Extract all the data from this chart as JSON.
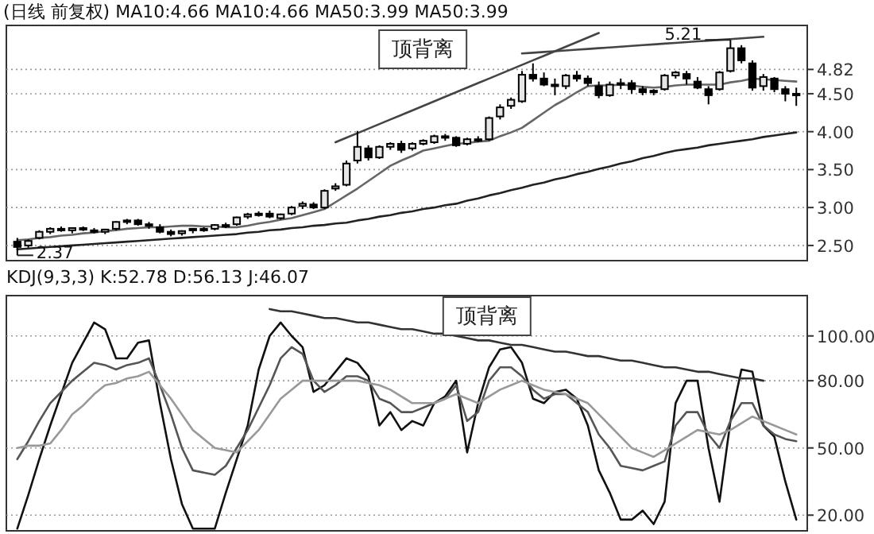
{
  "chart_data": [
    {
      "type": "candlestick",
      "title": "(日线 前复权) MA10:4.66 MA10:4.66 MA50:3.99 MA50:3.99",
      "tick_labels": "y",
      "grid": "y",
      "ylim": [
        2.3,
        5.4
      ],
      "yticks": [
        {
          "value": 2.5,
          "label": "2.50"
        },
        {
          "value": 3,
          "label": "3.00"
        },
        {
          "value": 3.5,
          "label": "3.50"
        },
        {
          "value": 4,
          "label": "4.00"
        },
        {
          "value": 4.5,
          "label": "4.50"
        },
        {
          "value": 4.82,
          "label": "4.82"
        }
      ],
      "categories": [
        null,
        null,
        null,
        null,
        null,
        null,
        null,
        null,
        null,
        null,
        null,
        null,
        null,
        null,
        null,
        null,
        null,
        null,
        null,
        null,
        null,
        null,
        null,
        null,
        null,
        null,
        null,
        null,
        null,
        null,
        null,
        null,
        null,
        null,
        null,
        null,
        null,
        null,
        null,
        null,
        null,
        null,
        null,
        null,
        null,
        null,
        null,
        null,
        null,
        null,
        null,
        null,
        null,
        null,
        null,
        null,
        null,
        null,
        null,
        null,
        null,
        null,
        null,
        null,
        null,
        null,
        null,
        null,
        null,
        null,
        null,
        null
      ],
      "ohlc": [
        [
          2.55,
          2.6,
          2.37,
          2.48
        ],
        [
          2.5,
          2.58,
          2.47,
          2.56
        ],
        [
          2.6,
          2.7,
          2.58,
          2.68
        ],
        [
          2.68,
          2.74,
          2.65,
          2.72
        ],
        [
          2.72,
          2.75,
          2.68,
          2.7
        ],
        [
          2.7,
          2.74,
          2.66,
          2.73
        ],
        [
          2.73,
          2.75,
          2.69,
          2.71
        ],
        [
          2.7,
          2.73,
          2.66,
          2.69
        ],
        [
          2.68,
          2.72,
          2.65,
          2.71
        ],
        [
          2.72,
          2.82,
          2.7,
          2.81
        ],
        [
          2.82,
          2.85,
          2.78,
          2.83
        ],
        [
          2.83,
          2.85,
          2.76,
          2.78
        ],
        [
          2.78,
          2.81,
          2.72,
          2.76
        ],
        [
          2.74,
          2.78,
          2.66,
          2.68
        ],
        [
          2.68,
          2.71,
          2.62,
          2.65
        ],
        [
          2.66,
          2.7,
          2.63,
          2.69
        ],
        [
          2.7,
          2.73,
          2.66,
          2.72
        ],
        [
          2.72,
          2.74,
          2.68,
          2.7
        ],
        [
          2.72,
          2.78,
          2.7,
          2.77
        ],
        [
          2.77,
          2.8,
          2.73,
          2.76
        ],
        [
          2.78,
          2.88,
          2.76,
          2.87
        ],
        [
          2.88,
          2.93,
          2.85,
          2.91
        ],
        [
          2.92,
          2.95,
          2.88,
          2.9
        ],
        [
          2.92,
          2.96,
          2.86,
          2.88
        ],
        [
          2.86,
          2.92,
          2.84,
          2.91
        ],
        [
          2.92,
          3.02,
          2.9,
          3.0
        ],
        [
          3.02,
          3.08,
          2.98,
          3.05
        ],
        [
          3.04,
          3.07,
          2.98,
          3.0
        ],
        [
          3.0,
          3.24,
          2.98,
          3.22
        ],
        [
          3.25,
          3.32,
          3.22,
          3.28
        ],
        [
          3.3,
          3.62,
          3.28,
          3.58
        ],
        [
          3.62,
          4.01,
          3.58,
          3.8
        ],
        [
          3.78,
          3.82,
          3.62,
          3.66
        ],
        [
          3.66,
          3.82,
          3.64,
          3.8
        ],
        [
          3.8,
          3.86,
          3.76,
          3.84
        ],
        [
          3.84,
          3.88,
          3.72,
          3.76
        ],
        [
          3.78,
          3.86,
          3.75,
          3.84
        ],
        [
          3.84,
          3.9,
          3.82,
          3.88
        ],
        [
          3.86,
          3.96,
          3.84,
          3.94
        ],
        [
          3.94,
          3.97,
          3.88,
          3.92
        ],
        [
          3.92,
          3.94,
          3.8,
          3.82
        ],
        [
          3.84,
          3.92,
          3.82,
          3.9
        ],
        [
          3.9,
          3.94,
          3.86,
          3.88
        ],
        [
          3.9,
          4.2,
          3.88,
          4.18
        ],
        [
          4.2,
          4.36,
          4.16,
          4.32
        ],
        [
          4.34,
          4.45,
          4.3,
          4.42
        ],
        [
          4.4,
          4.8,
          4.38,
          4.75
        ],
        [
          4.75,
          4.9,
          4.66,
          4.7
        ],
        [
          4.7,
          4.78,
          4.6,
          4.62
        ],
        [
          4.62,
          4.7,
          4.48,
          4.6
        ],
        [
          4.6,
          4.76,
          4.56,
          4.74
        ],
        [
          4.74,
          4.8,
          4.66,
          4.7
        ],
        [
          4.7,
          4.74,
          4.6,
          4.64
        ],
        [
          4.6,
          4.66,
          4.44,
          4.48
        ],
        [
          4.48,
          4.66,
          4.46,
          4.62
        ],
        [
          4.62,
          4.7,
          4.56,
          4.64
        ],
        [
          4.64,
          4.68,
          4.5,
          4.56
        ],
        [
          4.56,
          4.6,
          4.48,
          4.52
        ],
        [
          4.52,
          4.56,
          4.48,
          4.54
        ],
        [
          4.56,
          4.76,
          4.54,
          4.74
        ],
        [
          4.74,
          4.8,
          4.7,
          4.78
        ],
        [
          4.76,
          4.8,
          4.62,
          4.7
        ],
        [
          4.66,
          4.72,
          4.56,
          4.58
        ],
        [
          4.56,
          4.6,
          4.36,
          4.48
        ],
        [
          4.56,
          4.8,
          4.54,
          4.78
        ],
        [
          4.8,
          5.21,
          4.78,
          5.1
        ],
        [
          5.1,
          5.14,
          4.9,
          4.94
        ],
        [
          4.9,
          4.94,
          4.54,
          4.58
        ],
        [
          4.6,
          4.76,
          4.54,
          4.72
        ],
        [
          4.7,
          4.72,
          4.52,
          4.56
        ],
        [
          4.56,
          4.6,
          4.4,
          4.5
        ],
        [
          4.5,
          4.58,
          4.34,
          4.48
        ]
      ],
      "series": [
        {
          "type": "line",
          "color": "#666666",
          "values": [
            2.57,
            2.58,
            2.6,
            2.61,
            2.63,
            2.64,
            2.66,
            2.67,
            2.69,
            2.7,
            2.72,
            2.73,
            2.74,
            2.74,
            2.75,
            2.76,
            2.76,
            2.75,
            2.75,
            2.74,
            2.74,
            2.76,
            2.79,
            2.81,
            2.84,
            2.86,
            2.9,
            2.94,
            2.98,
            3.07,
            3.16,
            3.25,
            3.35,
            3.45,
            3.55,
            3.62,
            3.68,
            3.75,
            3.78,
            3.81,
            3.84,
            3.85,
            3.87,
            3.88,
            3.94,
            3.99,
            4.05,
            4.15,
            4.25,
            4.35,
            4.43,
            4.52,
            4.6,
            4.61,
            4.61,
            4.62,
            4.61,
            4.59,
            4.58,
            4.59,
            4.61,
            4.62,
            4.62,
            4.62,
            4.62,
            4.65,
            4.67,
            4.7,
            4.69,
            4.68,
            4.67,
            4.66
          ]
        },
        {
          "type": "line",
          "color": "#222222",
          "values": [
            2.45,
            2.46,
            2.47,
            2.48,
            2.49,
            2.5,
            2.51,
            2.52,
            2.53,
            2.54,
            2.55,
            2.56,
            2.57,
            2.58,
            2.59,
            2.6,
            2.61,
            2.62,
            2.63,
            2.64,
            2.65,
            2.67,
            2.68,
            2.7,
            2.71,
            2.73,
            2.74,
            2.76,
            2.77,
            2.79,
            2.8,
            2.83,
            2.85,
            2.88,
            2.9,
            2.93,
            2.95,
            2.98,
            3.0,
            3.03,
            3.05,
            3.09,
            3.12,
            3.16,
            3.19,
            3.23,
            3.26,
            3.3,
            3.33,
            3.37,
            3.4,
            3.44,
            3.47,
            3.51,
            3.54,
            3.58,
            3.61,
            3.65,
            3.68,
            3.72,
            3.75,
            3.77,
            3.79,
            3.82,
            3.84,
            3.86,
            3.88,
            3.9,
            3.93,
            3.95,
            3.97,
            3.99
          ]
        },
        {
          "type": "line",
          "color": "#444444",
          "values": [
            null,
            null,
            null,
            null,
            null,
            null,
            null,
            null,
            null,
            null,
            null,
            null,
            null,
            null,
            null,
            null,
            null,
            null,
            null,
            null,
            null,
            null,
            null,
            null,
            null,
            null,
            null,
            null,
            null,
            3.86,
            3.92,
            3.98,
            4.04,
            4.1,
            4.16,
            4.22,
            4.28,
            4.34,
            4.4,
            4.46,
            4.52,
            4.58,
            4.64,
            4.7,
            4.76,
            4.82,
            4.88,
            4.94,
            5.0,
            5.06,
            5.12,
            5.18,
            5.24,
            5.3,
            null,
            null,
            null,
            null,
            null,
            null,
            null,
            null,
            null,
            null,
            null,
            null,
            null,
            null,
            null,
            null,
            null,
            null
          ]
        },
        {
          "type": "line",
          "color": "#444444",
          "values": [
            null,
            null,
            null,
            null,
            null,
            null,
            null,
            null,
            null,
            null,
            null,
            null,
            null,
            null,
            null,
            null,
            null,
            null,
            null,
            null,
            null,
            null,
            null,
            null,
            null,
            null,
            null,
            null,
            null,
            null,
            null,
            null,
            null,
            null,
            null,
            null,
            null,
            null,
            null,
            null,
            null,
            null,
            null,
            null,
            null,
            null,
            5.03,
            5.04,
            5.05,
            5.06,
            5.07,
            5.08,
            5.09,
            5.1,
            5.11,
            5.12,
            5.13,
            5.14,
            5.15,
            5.16,
            5.17,
            5.18,
            5.19,
            5.2,
            5.21,
            5.22,
            5.23,
            5.24,
            5.25,
            null,
            null,
            null
          ]
        }
      ],
      "annotations": [
        "顶背离",
        {
          "text": "5.21",
          "y": 5.21
        },
        {
          "text": "2.37",
          "y": 2.37
        }
      ]
    },
    {
      "type": "line",
      "title": "KDJ(9,3,3) K:52.78 D:56.13 J:46.07",
      "tick_labels": "y",
      "grid": "y",
      "ylim": [
        13,
        118
      ],
      "yticks": [
        {
          "value": 20,
          "label": "20.00"
        },
        {
          "value": 50,
          "label": "50.00"
        },
        {
          "value": 80,
          "label": "80.00"
        },
        {
          "value": 100,
          "label": "100.00"
        }
      ],
      "categories": [
        null,
        null,
        null,
        null,
        null,
        null,
        null,
        null,
        null,
        null,
        null,
        null,
        null,
        null,
        null,
        null,
        null,
        null,
        null,
        null,
        null,
        null,
        null,
        null,
        null,
        null,
        null,
        null,
        null,
        null,
        null,
        null,
        null,
        null,
        null,
        null,
        null,
        null,
        null,
        null,
        null,
        null,
        null,
        null,
        null,
        null,
        null,
        null,
        null,
        null,
        null,
        null,
        null,
        null,
        null,
        null,
        null,
        null,
        null,
        null,
        null,
        null,
        null,
        null,
        null,
        null,
        null,
        null,
        null,
        null,
        null,
        null
      ],
      "series": [
        {
          "color": "#111111",
          "values": [
            14,
            29,
            45,
            60,
            74,
            88,
            97,
            106,
            103,
            90,
            90,
            97,
            98,
            70,
            45,
            25,
            14,
            14,
            14,
            30,
            45,
            60,
            85,
            100,
            106,
            100,
            95,
            75,
            78,
            84,
            90,
            88,
            82,
            60,
            66,
            58,
            62,
            60,
            70,
            73,
            80,
            48,
            70,
            86,
            94,
            95,
            88,
            72,
            70,
            75,
            76,
            72,
            60,
            40,
            30,
            18,
            18,
            22,
            16,
            26,
            70,
            80,
            80,
            50,
            26,
            62,
            85,
            84,
            60,
            55,
            35,
            18
          ]
        },
        {
          "color": "#555555",
          "values": [
            45,
            53,
            62,
            70,
            75,
            80,
            84,
            88,
            87,
            85,
            87,
            88,
            90,
            78,
            65,
            50,
            40,
            39,
            38,
            42,
            50,
            58,
            68,
            78,
            90,
            95,
            92,
            80,
            75,
            78,
            82,
            82,
            80,
            72,
            70,
            66,
            66,
            68,
            70,
            72,
            78,
            62,
            66,
            80,
            86,
            86,
            82,
            76,
            72,
            74,
            74,
            70,
            66,
            56,
            50,
            42,
            41,
            40,
            42,
            44,
            60,
            66,
            66,
            56,
            50,
            62,
            70,
            70,
            60,
            56,
            54,
            53
          ]
        },
        {
          "color": "#999999",
          "values": [
            50,
            51,
            51,
            52,
            58,
            65,
            69,
            74,
            78,
            79,
            81,
            82,
            84,
            78,
            72,
            65,
            58,
            54,
            50,
            49,
            48,
            53,
            58,
            65,
            72,
            76,
            80,
            80,
            80,
            80,
            80,
            80,
            79,
            78,
            76,
            73,
            70,
            70,
            70,
            72,
            74,
            72,
            70,
            73,
            76,
            78,
            80,
            78,
            76,
            75,
            74,
            72,
            70,
            65,
            60,
            55,
            50,
            48,
            46,
            49,
            52,
            55,
            58,
            57,
            56,
            58,
            61,
            64,
            62,
            60,
            58,
            56
          ]
        },
        {
          "color": "#333333",
          "values": [
            null,
            null,
            null,
            null,
            null,
            null,
            null,
            null,
            null,
            null,
            null,
            null,
            null,
            null,
            null,
            null,
            null,
            null,
            null,
            null,
            null,
            null,
            null,
            112,
            111,
            111,
            110,
            109,
            108,
            108,
            107,
            106,
            106,
            105,
            104,
            103,
            103,
            102,
            101,
            101,
            100,
            99,
            98,
            98,
            97,
            96,
            96,
            95,
            94,
            93,
            93,
            92,
            91,
            91,
            90,
            89,
            89,
            88,
            87,
            86,
            86,
            85,
            84,
            84,
            83,
            82,
            81,
            81,
            80,
            null,
            null,
            null
          ]
        }
      ],
      "annotations": [
        "顶背离"
      ]
    }
  ]
}
